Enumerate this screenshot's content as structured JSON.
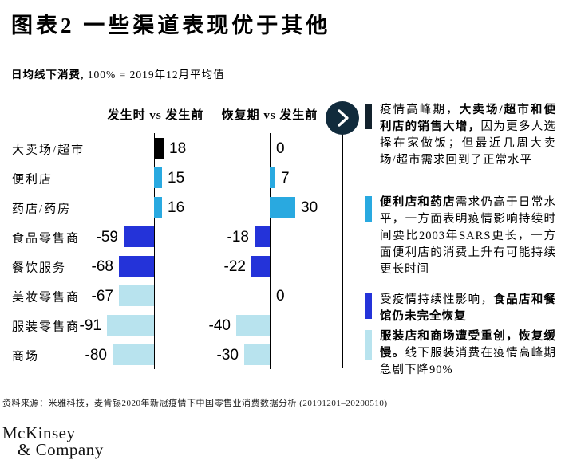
{
  "header": {
    "title": "图表2 一些渠道表现优于其他",
    "subtitle_bold": "日均线下消费,",
    "subtitle_rest": "100% = 2019年12月平均值"
  },
  "chart_data": {
    "type": "bar",
    "orientation": "horizontal",
    "title": "图表2 一些渠道表现优于其他",
    "subtitle": "日均线下消费, 100% = 2019年12月平均值",
    "categories": [
      "大卖场/超市",
      "便利店",
      "药店/药房",
      "食品零售商",
      "餐饮服务",
      "美妆零售商",
      "服装零售商",
      "商场"
    ],
    "series": [
      {
        "name": "发生时 vs 发生前",
        "values": [
          18,
          15,
          16,
          -59,
          -68,
          -67,
          -91,
          -80
        ]
      },
      {
        "name": "恢复期 vs 发生前",
        "values": [
          0,
          7,
          30,
          -18,
          -22,
          0,
          -40,
          -30
        ]
      }
    ],
    "row_colors": [
      "black",
      "light",
      "light",
      "royal",
      "royal",
      "pale",
      "pale",
      "pale"
    ],
    "palette": {
      "black": "#000000",
      "light": "#29a9e0",
      "royal": "#2433d9",
      "pale": "#b8e3ee"
    },
    "axis": {
      "baseline": 0,
      "grid": false,
      "value_labels": "outside-end"
    }
  },
  "arrow_button": {
    "color": "#112b3c"
  },
  "bullets": [
    {
      "color": "#13222d",
      "segments": [
        {
          "text": "疫情高峰期，"
        },
        {
          "text": "大卖场/超市和便利店的销售大增，"
        },
        {
          "text": "因为更多人选择在家做饭；但最近几周大卖场/超市需求回到了正常水平"
        }
      ]
    },
    {
      "color": "#29a9e0",
      "segments": [
        {
          "text": "便利店和药店"
        },
        {
          "text": "需求仍高于日常水平，一方面表明疫情影响持续时间要比2003年SARS更长，一方面便利店的消费上升有可能持续更长时间"
        }
      ]
    },
    {
      "color": "#2433d9",
      "segments": [
        {
          "text": "受疫情持续性影响，"
        },
        {
          "text": "食品店和餐馆仍未完全恢复"
        }
      ]
    },
    {
      "color": "#b8e3ee",
      "segments": [
        {
          "text": "服装店和商场遭受重创，恢复缓慢。"
        },
        {
          "text": "线下服装消费在疫情高峰期急剧下降90%"
        }
      ]
    }
  ],
  "footer": {
    "source": "资料来源：米雅科技，麦肯锡2020年新冠疫情下中国零售业消费数据分析 (20191201–20200510)"
  },
  "logo": {
    "line1": "McKinsey",
    "line2": "& Company"
  }
}
